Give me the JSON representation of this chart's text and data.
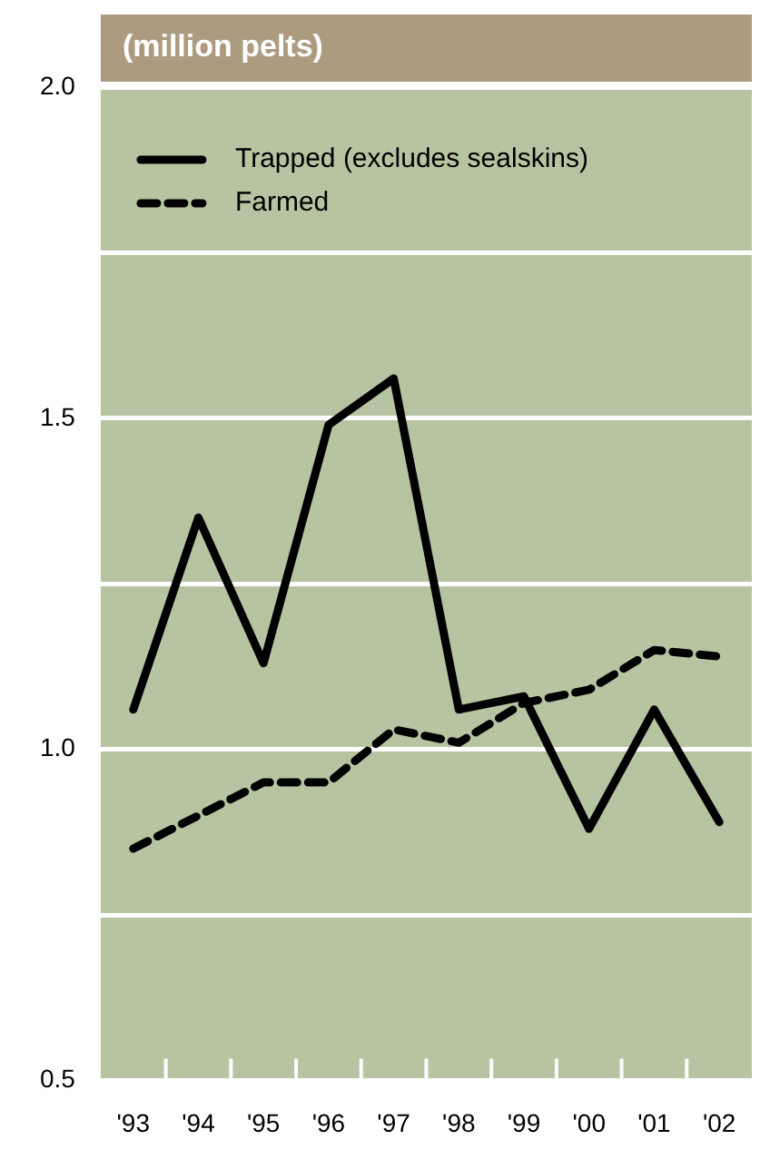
{
  "chart_data": {
    "type": "line",
    "title": "(million pelts)",
    "categories": [
      "'93",
      "'94",
      "'95",
      "'96",
      "'97",
      "'98",
      "'99",
      "'00",
      "'01",
      "'02"
    ],
    "series": [
      {
        "name": "Trapped (excludes sealskins)",
        "color": "#000000",
        "line_style": "solid",
        "values": [
          1.06,
          1.35,
          1.13,
          1.49,
          1.56,
          1.06,
          1.08,
          0.88,
          1.06,
          0.89
        ]
      },
      {
        "name": "Farmed",
        "color": "#000000",
        "line_style": "dashed",
        "values": [
          0.85,
          0.9,
          0.95,
          0.95,
          1.03,
          1.01,
          1.07,
          1.09,
          1.15,
          1.14
        ]
      }
    ],
    "ylim": [
      0.5,
      2.0
    ],
    "yticks": [
      {
        "value": 0.5,
        "label": "0.5"
      },
      {
        "value": 0.75,
        "label": null
      },
      {
        "value": 1.0,
        "label": "1.0"
      },
      {
        "value": 1.25,
        "label": null
      },
      {
        "value": 1.5,
        "label": "1.5"
      },
      {
        "value": 1.75,
        "label": null
      },
      {
        "value": 2.0,
        "label": "2.0"
      }
    ],
    "grid": "y",
    "legend": "top left",
    "marker": "none"
  }
}
